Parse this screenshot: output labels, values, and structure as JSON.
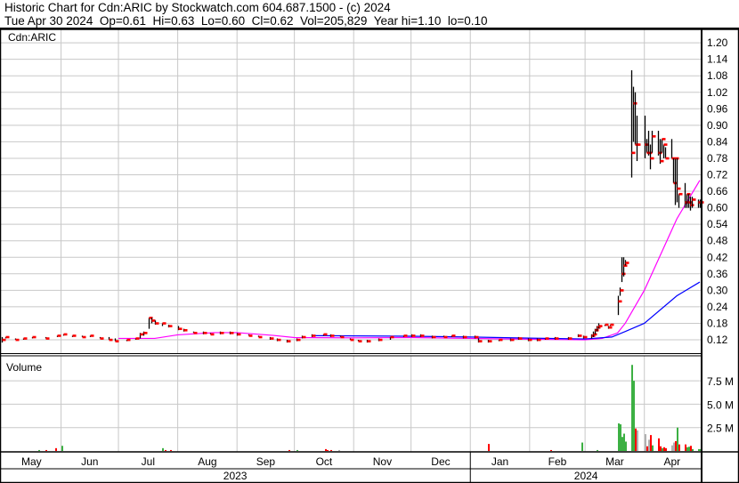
{
  "header": {
    "title": "Historic Chart for Cdn:ARIC by Stockwatch.com 604.687.1500 - (c) 2024",
    "summary": "Tue Apr 30 2024  Op=0.61  Hi=0.63  Lo=0.60  Cl=0.62  Vol=205,829  Year hi=1.10  lo=0.10"
  },
  "chart_data": {
    "type": "bar",
    "symbol_label": "Cdn:ARIC",
    "volume_label": "Volume",
    "price_axis": {
      "ticks": [
        "0.12",
        "0.18",
        "0.24",
        "0.30",
        "0.36",
        "0.42",
        "0.48",
        "0.54",
        "0.60",
        "0.66",
        "0.72",
        "0.78",
        "0.84",
        "0.90",
        "0.96",
        "1.02",
        "1.08",
        "1.14",
        "1.20"
      ],
      "range": [
        0.08,
        1.24
      ]
    },
    "volume_axis": {
      "ticks": [
        {
          "v": 2.5,
          "label": "2.5 M"
        },
        {
          "v": 5.0,
          "label": "5.0 M"
        },
        {
          "v": 7.5,
          "label": "7.5 M"
        }
      ],
      "range": [
        0,
        10.2
      ]
    },
    "x_range": [
      "2023-05-01",
      "2024-04-30"
    ],
    "months": [
      {
        "label": "May",
        "start": "2023-05-01"
      },
      {
        "label": "Jun",
        "start": "2023-06-01"
      },
      {
        "label": "Jul",
        "start": "2023-07-01"
      },
      {
        "label": "Aug",
        "start": "2023-08-01"
      },
      {
        "label": "Sep",
        "start": "2023-09-01"
      },
      {
        "label": "Oct",
        "start": "2023-10-01"
      },
      {
        "label": "Nov",
        "start": "2023-11-01"
      },
      {
        "label": "Dec",
        "start": "2023-12-01"
      },
      {
        "label": "Jan",
        "start": "2024-01-01"
      },
      {
        "label": "Feb",
        "start": "2024-02-01"
      },
      {
        "label": "Mar",
        "start": "2024-03-01"
      },
      {
        "label": "Apr",
        "start": "2024-04-01"
      }
    ],
    "years": [
      {
        "label": "2023",
        "start": "2023-05-01",
        "end": "2024-01-01"
      },
      {
        "label": "2024",
        "start": "2024-01-01",
        "end": "2024-04-30"
      }
    ],
    "grid": true,
    "colors": {
      "bar": "#000000",
      "close_tick": "#ff0000",
      "ma_short": "#ff00ff",
      "ma_long": "#0000ff",
      "vol_up": "#3cb043",
      "vol_down": "#ff0000",
      "vol_flat": "#b0b0b0"
    },
    "price_bars_hlc": [
      [
        "2023-05-01",
        0.13,
        0.11,
        0.12
      ],
      [
        "2023-05-03",
        0.13,
        0.125,
        0.13
      ],
      [
        "2023-05-08",
        0.125,
        0.12,
        0.12
      ],
      [
        "2023-05-12",
        0.125,
        0.12,
        0.125
      ],
      [
        "2023-05-17",
        0.13,
        0.125,
        0.13
      ],
      [
        "2023-05-24",
        0.13,
        0.125,
        0.125
      ],
      [
        "2023-05-30",
        0.135,
        0.13,
        0.135
      ],
      [
        "2023-06-02",
        0.14,
        0.135,
        0.14
      ],
      [
        "2023-06-07",
        0.135,
        0.13,
        0.135
      ],
      [
        "2023-06-12",
        0.135,
        0.13,
        0.13
      ],
      [
        "2023-06-16",
        0.135,
        0.13,
        0.135
      ],
      [
        "2023-06-21",
        0.13,
        0.125,
        0.125
      ],
      [
        "2023-06-26",
        0.13,
        0.12,
        0.12
      ],
      [
        "2023-06-29",
        0.125,
        0.115,
        0.115
      ],
      [
        "2023-07-05",
        0.12,
        0.115,
        0.12
      ],
      [
        "2023-07-10",
        0.125,
        0.12,
        0.125
      ],
      [
        "2023-07-12",
        0.145,
        0.125,
        0.14
      ],
      [
        "2023-07-14",
        0.15,
        0.135,
        0.145
      ],
      [
        "2023-07-17",
        0.2,
        0.16,
        0.2
      ],
      [
        "2023-07-18",
        0.2,
        0.18,
        0.19
      ],
      [
        "2023-07-20",
        0.19,
        0.175,
        0.18
      ],
      [
        "2023-07-24",
        0.18,
        0.17,
        0.18
      ],
      [
        "2023-07-27",
        0.175,
        0.165,
        0.17
      ],
      [
        "2023-08-01",
        0.17,
        0.155,
        0.16
      ],
      [
        "2023-08-04",
        0.16,
        0.15,
        0.155
      ],
      [
        "2023-08-09",
        0.15,
        0.145,
        0.145
      ],
      [
        "2023-08-14",
        0.15,
        0.14,
        0.145
      ],
      [
        "2023-08-18",
        0.145,
        0.14,
        0.14
      ],
      [
        "2023-08-23",
        0.15,
        0.14,
        0.145
      ],
      [
        "2023-08-28",
        0.15,
        0.14,
        0.145
      ],
      [
        "2023-09-01",
        0.145,
        0.135,
        0.14
      ],
      [
        "2023-09-07",
        0.14,
        0.135,
        0.135
      ],
      [
        "2023-09-12",
        0.135,
        0.13,
        0.13
      ],
      [
        "2023-09-18",
        0.13,
        0.12,
        0.125
      ],
      [
        "2023-09-22",
        0.125,
        0.115,
        0.12
      ],
      [
        "2023-09-27",
        0.12,
        0.11,
        0.115
      ],
      [
        "2023-10-02",
        0.125,
        0.115,
        0.12
      ],
      [
        "2023-10-05",
        0.135,
        0.125,
        0.13
      ],
      [
        "2023-10-10",
        0.14,
        0.13,
        0.135
      ],
      [
        "2023-10-16",
        0.14,
        0.135,
        0.14
      ],
      [
        "2023-10-20",
        0.14,
        0.13,
        0.135
      ],
      [
        "2023-10-25",
        0.135,
        0.13,
        0.13
      ],
      [
        "2023-10-30",
        0.125,
        0.12,
        0.12
      ],
      [
        "2023-11-03",
        0.12,
        0.115,
        0.115
      ],
      [
        "2023-11-08",
        0.12,
        0.11,
        0.115
      ],
      [
        "2023-11-14",
        0.125,
        0.115,
        0.12
      ],
      [
        "2023-11-20",
        0.13,
        0.12,
        0.13
      ],
      [
        "2023-11-27",
        0.135,
        0.13,
        0.135
      ],
      [
        "2023-12-01",
        0.14,
        0.13,
        0.135
      ],
      [
        "2023-12-06",
        0.14,
        0.13,
        0.135
      ],
      [
        "2023-12-12",
        0.135,
        0.125,
        0.13
      ],
      [
        "2023-12-18",
        0.135,
        0.13,
        0.13
      ],
      [
        "2023-12-22",
        0.135,
        0.13,
        0.135
      ],
      [
        "2023-12-28",
        0.135,
        0.125,
        0.13
      ],
      [
        "2024-01-03",
        0.135,
        0.125,
        0.13
      ],
      [
        "2024-01-05",
        0.125,
        0.11,
        0.115
      ],
      [
        "2024-01-10",
        0.12,
        0.11,
        0.115
      ],
      [
        "2024-01-16",
        0.12,
        0.115,
        0.12
      ],
      [
        "2024-01-22",
        0.125,
        0.115,
        0.12
      ],
      [
        "2024-01-26",
        0.13,
        0.12,
        0.125
      ],
      [
        "2024-01-31",
        0.125,
        0.115,
        0.12
      ],
      [
        "2024-02-05",
        0.125,
        0.115,
        0.12
      ],
      [
        "2024-02-09",
        0.125,
        0.12,
        0.125
      ],
      [
        "2024-02-14",
        0.13,
        0.12,
        0.125
      ],
      [
        "2024-02-21",
        0.13,
        0.12,
        0.125
      ],
      [
        "2024-02-26",
        0.14,
        0.13,
        0.135
      ],
      [
        "2024-02-29",
        0.135,
        0.125,
        0.13
      ],
      [
        "2024-03-04",
        0.14,
        0.125,
        0.135
      ],
      [
        "2024-03-05",
        0.15,
        0.13,
        0.14
      ],
      [
        "2024-03-06",
        0.16,
        0.14,
        0.155
      ],
      [
        "2024-03-07",
        0.17,
        0.15,
        0.165
      ],
      [
        "2024-03-08",
        0.18,
        0.16,
        0.17
      ],
      [
        "2024-03-11",
        0.175,
        0.17,
        0.175
      ],
      [
        "2024-03-13",
        0.17,
        0.16,
        0.165
      ],
      [
        "2024-03-14",
        0.175,
        0.17,
        0.175
      ],
      [
        "2024-03-18",
        0.28,
        0.21,
        0.26
      ],
      [
        "2024-03-19",
        0.31,
        0.28,
        0.3
      ],
      [
        "2024-03-20",
        0.42,
        0.33,
        0.36
      ],
      [
        "2024-03-21",
        0.42,
        0.35,
        0.39
      ],
      [
        "2024-03-22",
        0.41,
        0.39,
        0.4
      ],
      [
        "2024-03-25",
        1.1,
        0.71,
        0.8
      ],
      [
        "2024-03-26",
        1.04,
        0.84,
        0.98
      ],
      [
        "2024-03-27",
        1.02,
        0.83,
        0.83
      ],
      [
        "2024-03-28",
        0.935,
        0.77,
        0.83
      ],
      [
        "2024-04-01",
        0.935,
        0.78,
        0.83
      ],
      [
        "2024-04-02",
        0.85,
        0.8,
        0.8
      ],
      [
        "2024-04-03",
        0.88,
        0.79,
        0.8
      ],
      [
        "2024-04-04",
        0.83,
        0.74,
        0.78
      ],
      [
        "2024-04-05",
        0.88,
        0.8,
        0.86
      ],
      [
        "2024-04-08",
        0.88,
        0.79,
        0.8
      ],
      [
        "2024-04-09",
        0.85,
        0.76,
        0.77
      ],
      [
        "2024-04-10",
        0.85,
        0.8,
        0.85
      ],
      [
        "2024-04-11",
        0.83,
        0.78,
        0.83
      ],
      [
        "2024-04-12",
        0.82,
        0.78,
        0.78
      ],
      [
        "2024-04-15",
        0.85,
        0.78,
        0.78
      ],
      [
        "2024-04-16",
        0.78,
        0.69,
        0.69
      ],
      [
        "2024-04-17",
        0.78,
        0.61,
        0.78
      ],
      [
        "2024-04-18",
        0.78,
        0.62,
        0.67
      ],
      [
        "2024-04-19",
        0.65,
        0.6,
        0.65
      ],
      [
        "2024-04-22",
        0.69,
        0.6,
        0.62
      ],
      [
        "2024-04-23",
        0.65,
        0.6,
        0.65
      ],
      [
        "2024-04-24",
        0.65,
        0.6,
        0.62
      ],
      [
        "2024-04-25",
        0.64,
        0.59,
        0.61
      ],
      [
        "2024-04-26",
        0.64,
        0.6,
        0.63
      ],
      [
        "2024-04-29",
        0.63,
        0.6,
        0.62
      ],
      [
        "2024-04-30",
        0.63,
        0.6,
        0.62
      ]
    ],
    "ma_short": [
      [
        "2023-07-01",
        0.125
      ],
      [
        "2023-07-20",
        0.125
      ],
      [
        "2023-08-01",
        0.138
      ],
      [
        "2023-08-20",
        0.146
      ],
      [
        "2023-09-01",
        0.146
      ],
      [
        "2023-09-20",
        0.136
      ],
      [
        "2023-10-01",
        0.128
      ],
      [
        "2023-11-01",
        0.127
      ],
      [
        "2023-12-01",
        0.128
      ],
      [
        "2024-01-01",
        0.125
      ],
      [
        "2024-02-01",
        0.122
      ],
      [
        "2024-03-01",
        0.12
      ],
      [
        "2024-03-10",
        0.125
      ],
      [
        "2024-03-18",
        0.145
      ],
      [
        "2024-03-22",
        0.18
      ],
      [
        "2024-04-01",
        0.3
      ],
      [
        "2024-04-18",
        0.56
      ],
      [
        "2024-04-30",
        0.7
      ]
    ],
    "ma_long": [
      [
        "2023-10-12",
        0.135
      ],
      [
        "2023-12-01",
        0.133
      ],
      [
        "2024-01-01",
        0.13
      ],
      [
        "2024-02-01",
        0.126
      ],
      [
        "2024-03-01",
        0.123
      ],
      [
        "2024-03-15",
        0.13
      ],
      [
        "2024-03-22",
        0.15
      ],
      [
        "2024-04-01",
        0.18
      ],
      [
        "2024-04-18",
        0.28
      ],
      [
        "2024-04-30",
        0.33
      ]
    ],
    "volume_m": [
      [
        "2023-05-20",
        0.1,
        "up"
      ],
      [
        "2023-05-24",
        0.1,
        "down"
      ],
      [
        "2023-05-29",
        0.3,
        "down"
      ],
      [
        "2023-06-01",
        0.55,
        "up"
      ],
      [
        "2023-07-24",
        0.3,
        "up"
      ],
      [
        "2023-07-25",
        0.1,
        "down"
      ],
      [
        "2023-07-28",
        0.1,
        "down"
      ],
      [
        "2023-09-28",
        0.1,
        "down"
      ],
      [
        "2023-10-02",
        0.1,
        "up"
      ],
      [
        "2023-10-17",
        0.2,
        "down"
      ],
      [
        "2023-10-18",
        0.1,
        "down"
      ],
      [
        "2023-10-20",
        0.1,
        "down"
      ],
      [
        "2023-10-24",
        0.1,
        "flat"
      ],
      [
        "2024-01-10",
        0.75,
        "down"
      ],
      [
        "2024-02-12",
        0.1,
        "down"
      ],
      [
        "2024-02-28",
        0.9,
        "up"
      ],
      [
        "2024-03-07",
        0.1,
        "up"
      ],
      [
        "2024-03-18",
        2.95,
        "up"
      ],
      [
        "2024-03-19",
        2.85,
        "up"
      ],
      [
        "2024-03-20",
        1.5,
        "up"
      ],
      [
        "2024-03-21",
        1.85,
        "up"
      ],
      [
        "2024-03-22",
        1.0,
        "up"
      ],
      [
        "2024-03-25",
        9.2,
        "up"
      ],
      [
        "2024-03-26",
        7.5,
        "up"
      ],
      [
        "2024-03-27",
        2.4,
        "down"
      ],
      [
        "2024-03-28",
        2.2,
        "flat"
      ],
      [
        "2024-04-01",
        1.8,
        "flat"
      ],
      [
        "2024-04-02",
        0.5,
        "down"
      ],
      [
        "2024-04-03",
        1.2,
        "flat"
      ],
      [
        "2024-04-04",
        1.7,
        "down"
      ],
      [
        "2024-04-05",
        0.6,
        "up"
      ],
      [
        "2024-04-08",
        1.35,
        "down"
      ],
      [
        "2024-04-09",
        0.5,
        "down"
      ],
      [
        "2024-04-10",
        0.3,
        "up"
      ],
      [
        "2024-04-11",
        0.4,
        "down"
      ],
      [
        "2024-04-12",
        0.3,
        "down"
      ],
      [
        "2024-04-15",
        0.6,
        "flat"
      ],
      [
        "2024-04-16",
        0.9,
        "flat"
      ],
      [
        "2024-04-17",
        1.05,
        "down"
      ],
      [
        "2024-04-18",
        2.5,
        "up"
      ],
      [
        "2024-04-19",
        0.7,
        "down"
      ],
      [
        "2024-04-22",
        0.7,
        "down"
      ],
      [
        "2024-04-23",
        0.4,
        "up"
      ],
      [
        "2024-04-24",
        0.45,
        "up"
      ],
      [
        "2024-04-25",
        0.55,
        "down"
      ],
      [
        "2024-04-26",
        0.2,
        "up"
      ],
      [
        "2024-04-29",
        0.2,
        "up"
      ],
      [
        "2024-04-30",
        0.2,
        "up"
      ]
    ]
  }
}
